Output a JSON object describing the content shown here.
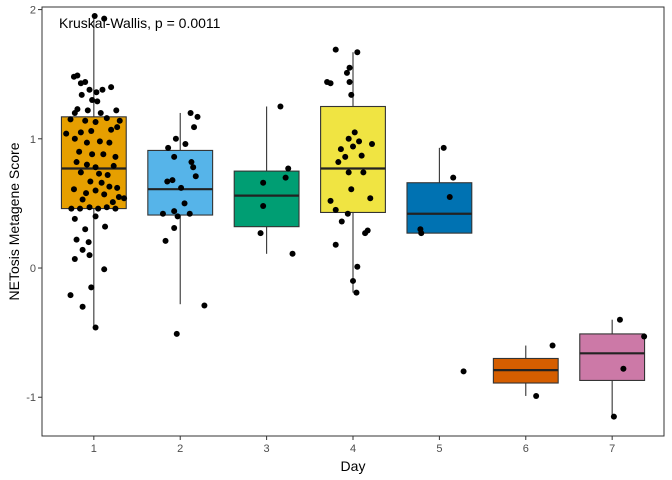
{
  "chart_data": {
    "type": "boxplot",
    "title": "",
    "xlabel": "Day",
    "ylabel": "NETosis Metagene Score",
    "annotation": "Kruskal-Wallis, p = 0.0011",
    "categories": [
      "1",
      "2",
      "3",
      "4",
      "5",
      "6",
      "7"
    ],
    "x_range": [
      0.4,
      7.6
    ],
    "ylim": [
      -1.3,
      2.02
    ],
    "y_ticks": [
      -1,
      0,
      1,
      2
    ],
    "y_tick_labels": [
      "-1",
      "0",
      "1",
      "2"
    ],
    "grid": false,
    "legend": "none",
    "boxes": [
      {
        "category": "1",
        "color": "#E69F00",
        "lower_whisker": -0.46,
        "q1": 0.46,
        "median": 0.77,
        "q3": 1.17,
        "upper_whisker": 1.95
      },
      {
        "category": "2",
        "color": "#56B4E9",
        "lower_whisker": -0.28,
        "q1": 0.41,
        "median": 0.61,
        "q3": 0.91,
        "upper_whisker": 1.2
      },
      {
        "category": "3",
        "color": "#009E73",
        "lower_whisker": 0.11,
        "q1": 0.32,
        "median": 0.56,
        "q3": 0.75,
        "upper_whisker": 1.25
      },
      {
        "category": "4",
        "color": "#F0E442",
        "lower_whisker": -0.19,
        "q1": 0.43,
        "median": 0.77,
        "q3": 1.25,
        "upper_whisker": 1.67
      },
      {
        "category": "5",
        "color": "#0072B2",
        "lower_whisker": 0.27,
        "q1": 0.27,
        "median": 0.42,
        "q3": 0.66,
        "upper_whisker": 0.93
      },
      {
        "category": "6",
        "color": "#D55E00",
        "lower_whisker": -0.99,
        "q1": -0.89,
        "median": -0.79,
        "q3": -0.7,
        "upper_whisker": -0.6
      },
      {
        "category": "7",
        "color": "#CC79A7",
        "lower_whisker": -1.15,
        "q1": -0.87,
        "median": -0.66,
        "q3": -0.51,
        "upper_whisker": -0.4
      }
    ],
    "points": [
      {
        "x": 1.01,
        "y": 1.95
      },
      {
        "x": 1.12,
        "y": 1.93
      },
      {
        "x": 0.77,
        "y": 1.48
      },
      {
        "x": 0.81,
        "y": 1.49
      },
      {
        "x": 0.85,
        "y": 1.43
      },
      {
        "x": 0.9,
        "y": 1.44
      },
      {
        "x": 0.95,
        "y": 1.38
      },
      {
        "x": 1.03,
        "y": 1.36
      },
      {
        "x": 1.1,
        "y": 1.38
      },
      {
        "x": 1.2,
        "y": 1.4
      },
      {
        "x": 0.86,
        "y": 1.34
      },
      {
        "x": 0.98,
        "y": 1.3
      },
      {
        "x": 1.04,
        "y": 1.29
      },
      {
        "x": 0.81,
        "y": 1.23
      },
      {
        "x": 0.93,
        "y": 1.22
      },
      {
        "x": 1.08,
        "y": 1.2
      },
      {
        "x": 1.26,
        "y": 1.22
      },
      {
        "x": 0.73,
        "y": 1.15
      },
      {
        "x": 0.78,
        "y": 1.2
      },
      {
        "x": 0.9,
        "y": 1.14
      },
      {
        "x": 1.02,
        "y": 1.13
      },
      {
        "x": 1.15,
        "y": 1.16
      },
      {
        "x": 1.3,
        "y": 1.14
      },
      {
        "x": 0.68,
        "y": 1.04
      },
      {
        "x": 0.85,
        "y": 1.05
      },
      {
        "x": 0.97,
        "y": 1.06
      },
      {
        "x": 1.2,
        "y": 1.07
      },
      {
        "x": 1.27,
        "y": 1.09
      },
      {
        "x": 0.78,
        "y": 1.0
      },
      {
        "x": 0.92,
        "y": 0.97
      },
      {
        "x": 1.07,
        "y": 0.98
      },
      {
        "x": 1.18,
        "y": 0.97
      },
      {
        "x": 0.83,
        "y": 0.9
      },
      {
        "x": 0.98,
        "y": 0.88
      },
      {
        "x": 1.11,
        "y": 0.88
      },
      {
        "x": 1.25,
        "y": 0.86
      },
      {
        "x": 0.8,
        "y": 0.82
      },
      {
        "x": 0.92,
        "y": 0.8
      },
      {
        "x": 1.02,
        "y": 0.78
      },
      {
        "x": 1.23,
        "y": 0.79
      },
      {
        "x": 0.85,
        "y": 0.74
      },
      {
        "x": 1.06,
        "y": 0.73
      },
      {
        "x": 1.16,
        "y": 0.72
      },
      {
        "x": 0.96,
        "y": 0.67
      },
      {
        "x": 1.09,
        "y": 0.66
      },
      {
        "x": 1.18,
        "y": 0.63
      },
      {
        "x": 1.27,
        "y": 0.62
      },
      {
        "x": 0.77,
        "y": 0.61
      },
      {
        "x": 0.91,
        "y": 0.58
      },
      {
        "x": 1.02,
        "y": 0.6
      },
      {
        "x": 1.12,
        "y": 0.57
      },
      {
        "x": 1.29,
        "y": 0.55
      },
      {
        "x": 1.35,
        "y": 0.54
      },
      {
        "x": 0.87,
        "y": 0.53
      },
      {
        "x": 1.22,
        "y": 0.51
      },
      {
        "x": 0.74,
        "y": 0.46
      },
      {
        "x": 0.84,
        "y": 0.46
      },
      {
        "x": 0.95,
        "y": 0.47
      },
      {
        "x": 1.05,
        "y": 0.46
      },
      {
        "x": 1.15,
        "y": 0.47
      },
      {
        "x": 1.25,
        "y": 0.46
      },
      {
        "x": 0.78,
        "y": 0.38
      },
      {
        "x": 1.02,
        "y": 0.4
      },
      {
        "x": 0.9,
        "y": 0.3
      },
      {
        "x": 1.13,
        "y": 0.32
      },
      {
        "x": 0.8,
        "y": 0.22
      },
      {
        "x": 0.94,
        "y": 0.2
      },
      {
        "x": 0.87,
        "y": 0.14
      },
      {
        "x": 0.78,
        "y": 0.07
      },
      {
        "x": 0.95,
        "y": 0.1
      },
      {
        "x": 1.12,
        "y": -0.01
      },
      {
        "x": 0.97,
        "y": -0.15
      },
      {
        "x": 0.73,
        "y": -0.21
      },
      {
        "x": 0.87,
        "y": -0.3
      },
      {
        "x": 1.02,
        "y": -0.46
      },
      {
        "x": 2.12,
        "y": 1.2
      },
      {
        "x": 2.2,
        "y": 1.17
      },
      {
        "x": 2.16,
        "y": 1.09
      },
      {
        "x": 1.95,
        "y": 1.0
      },
      {
        "x": 2.06,
        "y": 0.96
      },
      {
        "x": 1.86,
        "y": 0.93
      },
      {
        "x": 1.93,
        "y": 0.86
      },
      {
        "x": 2.13,
        "y": 0.82
      },
      {
        "x": 2.15,
        "y": 0.78
      },
      {
        "x": 2.18,
        "y": 0.71
      },
      {
        "x": 1.85,
        "y": 0.67
      },
      {
        "x": 1.91,
        "y": 0.68
      },
      {
        "x": 2.01,
        "y": 0.62
      },
      {
        "x": 2.05,
        "y": 0.5
      },
      {
        "x": 1.8,
        "y": 0.42
      },
      {
        "x": 1.97,
        "y": 0.4
      },
      {
        "x": 1.93,
        "y": 0.44
      },
      {
        "x": 2.11,
        "y": 0.42
      },
      {
        "x": 1.93,
        "y": 0.31
      },
      {
        "x": 1.83,
        "y": 0.21
      },
      {
        "x": 2.28,
        "y": -0.29
      },
      {
        "x": 1.96,
        "y": -0.51
      },
      {
        "x": 3.16,
        "y": 1.25
      },
      {
        "x": 3.25,
        "y": 0.77
      },
      {
        "x": 3.22,
        "y": 0.7
      },
      {
        "x": 2.96,
        "y": 0.66
      },
      {
        "x": 2.96,
        "y": 0.48
      },
      {
        "x": 2.93,
        "y": 0.27
      },
      {
        "x": 3.3,
        "y": 0.11
      },
      {
        "x": 3.8,
        "y": 1.69
      },
      {
        "x": 4.05,
        "y": 1.67
      },
      {
        "x": 3.96,
        "y": 1.55
      },
      {
        "x": 3.93,
        "y": 1.51
      },
      {
        "x": 3.7,
        "y": 1.44
      },
      {
        "x": 3.74,
        "y": 1.43
      },
      {
        "x": 3.96,
        "y": 1.44
      },
      {
        "x": 3.98,
        "y": 1.34
      },
      {
        "x": 4.02,
        "y": 1.05
      },
      {
        "x": 3.95,
        "y": 1.0
      },
      {
        "x": 4.07,
        "y": 0.98
      },
      {
        "x": 3.86,
        "y": 0.92
      },
      {
        "x": 4.0,
        "y": 0.94
      },
      {
        "x": 4.22,
        "y": 0.96
      },
      {
        "x": 3.91,
        "y": 0.86
      },
      {
        "x": 4.1,
        "y": 0.87
      },
      {
        "x": 3.83,
        "y": 0.82
      },
      {
        "x": 3.95,
        "y": 0.74
      },
      {
        "x": 4.12,
        "y": 0.74
      },
      {
        "x": 3.98,
        "y": 0.61
      },
      {
        "x": 3.74,
        "y": 0.52
      },
      {
        "x": 4.2,
        "y": 0.54
      },
      {
        "x": 3.8,
        "y": 0.45
      },
      {
        "x": 3.94,
        "y": 0.42
      },
      {
        "x": 3.87,
        "y": 0.36
      },
      {
        "x": 4.17,
        "y": 0.29
      },
      {
        "x": 4.14,
        "y": 0.27
      },
      {
        "x": 3.8,
        "y": 0.18
      },
      {
        "x": 4.05,
        "y": 0.01
      },
      {
        "x": 4.0,
        "y": -0.1
      },
      {
        "x": 4.04,
        "y": -0.19
      },
      {
        "x": 5.05,
        "y": 0.93
      },
      {
        "x": 5.16,
        "y": 0.7
      },
      {
        "x": 5.12,
        "y": 0.55
      },
      {
        "x": 4.78,
        "y": 0.3
      },
      {
        "x": 4.79,
        "y": 0.27
      },
      {
        "x": 5.28,
        "y": -0.8
      },
      {
        "x": 6.31,
        "y": -0.6
      },
      {
        "x": 6.12,
        "y": -0.99
      },
      {
        "x": 7.09,
        "y": -0.4
      },
      {
        "x": 7.37,
        "y": -0.53
      },
      {
        "x": 7.13,
        "y": -0.78
      },
      {
        "x": 7.02,
        "y": -1.15
      }
    ]
  }
}
